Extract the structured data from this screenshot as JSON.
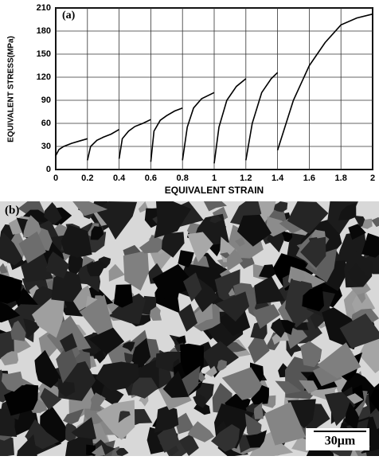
{
  "chart_data": {
    "type": "line",
    "panel_label": "(a)",
    "x_label": "EQUIVALENT STRAIN",
    "y_label": "EQUIVALENT STRESS(MPa)",
    "xlim": [
      0,
      2
    ],
    "ylim": [
      0,
      210
    ],
    "xticks": [
      0,
      0.2,
      0.4,
      0.6,
      0.8,
      1,
      1.2,
      1.4,
      1.6,
      1.8,
      2
    ],
    "yticks": [
      0,
      30,
      60,
      90,
      120,
      150,
      180,
      210
    ],
    "grid": true,
    "series": [
      {
        "color": "#000000",
        "x": [
          0,
          0.02,
          0.05,
          0.1,
          0.15,
          0.2,
          null,
          0.2,
          0.22,
          0.26,
          0.3,
          0.35,
          0.4,
          null,
          0.4,
          0.42,
          0.46,
          0.5,
          0.55,
          0.6,
          null,
          0.6,
          0.62,
          0.66,
          0.7,
          0.75,
          0.8,
          null,
          0.8,
          0.83,
          0.87,
          0.92,
          1,
          null,
          1,
          1.03,
          1.08,
          1.14,
          1.2,
          null,
          1.2,
          1.24,
          1.3,
          1.36,
          1.4,
          null,
          1.4,
          1.5,
          1.6,
          1.7,
          1.8,
          1.9,
          2
        ],
        "values": [
          18,
          26,
          30,
          34,
          37,
          40,
          null,
          12,
          30,
          38,
          42,
          46,
          52,
          null,
          14,
          40,
          50,
          56,
          60,
          65,
          null,
          10,
          50,
          64,
          70,
          76,
          80,
          null,
          12,
          55,
          80,
          92,
          100,
          null,
          8,
          55,
          90,
          108,
          118,
          null,
          12,
          60,
          100,
          118,
          126,
          null,
          25,
          90,
          135,
          165,
          188,
          197,
          202
        ]
      }
    ]
  },
  "micrograph": {
    "label": "(b)",
    "scale_bar": "30μm"
  }
}
